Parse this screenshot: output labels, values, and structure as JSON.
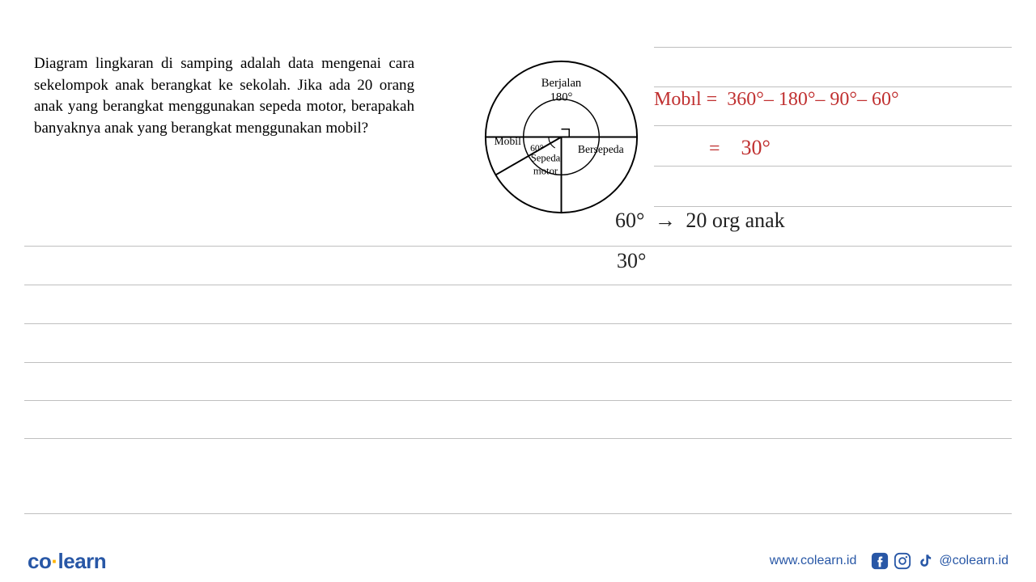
{
  "question": "Diagram lingkaran di samping adalah data mengenai cara sekelompok anak berangkat ke sekolah. Jika ada 20 orang anak yang berangkat menggunakan sepeda motor, berapakah banyaknya anak yang berangkat menggunakan mobil?",
  "pie": {
    "slices": [
      {
        "label": "Berjalan",
        "sub": "180°",
        "angle": 180
      },
      {
        "label": "Bersepeda",
        "angle": 90
      },
      {
        "label": "Sepeda motor",
        "angle_text": "60°",
        "angle": 60
      },
      {
        "label": "Mobil",
        "angle": 30
      }
    ],
    "stroke": "#000000",
    "fill": "#ffffff",
    "font_size": 13
  },
  "work": {
    "line1_label": "Mobıl =",
    "line1_expr": "360°– 180°– 90°– 60°",
    "line2_eq": "=",
    "line2_val": "30°",
    "line3_a": "60°",
    "line3_arrow": "→",
    "line3_b": "20 org anak",
    "line4": "30°"
  },
  "rules": {
    "right_tops": [
      58,
      107,
      155,
      205,
      255
    ],
    "full_tops": [
      304,
      352,
      400,
      448,
      495,
      542,
      635
    ]
  },
  "footer": {
    "brand_a": "co",
    "brand_b": "learn",
    "url": "www.colearn.id",
    "handle": "@colearn.id"
  },
  "colors": {
    "rule": "#bfbfbf",
    "red": "#c03030",
    "black": "#222222",
    "brand_blue": "#2857a6",
    "brand_gold": "#ffb300"
  }
}
